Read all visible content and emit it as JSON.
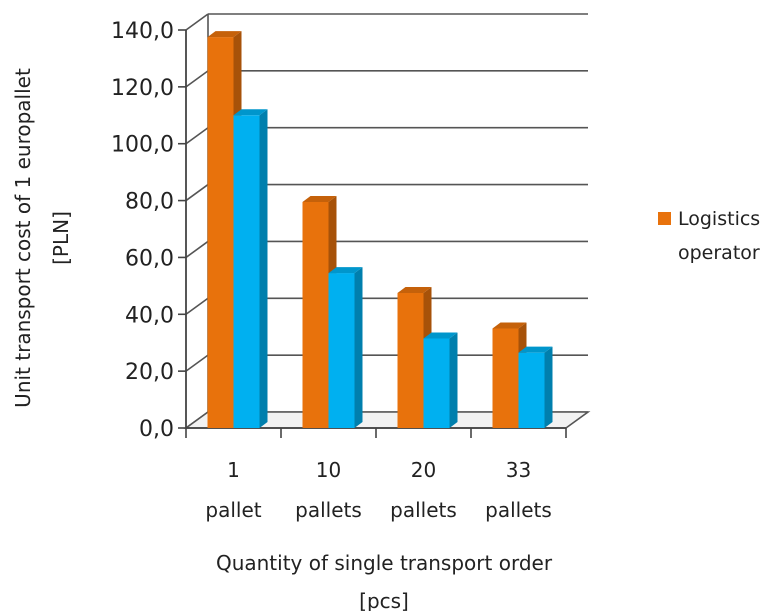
{
  "chart_data": {
    "type": "bar",
    "categories": [
      "1 pallet",
      "10 pallets",
      "20 pallets",
      "33 pallets"
    ],
    "category_lines": [
      [
        "1",
        "pallet"
      ],
      [
        "10",
        "pallets"
      ],
      [
        "20",
        "pallets"
      ],
      [
        "33",
        "pallets"
      ]
    ],
    "series": [
      {
        "name": "Logistics operator",
        "values": [
          137.5,
          79.5,
          47.5,
          35.0
        ],
        "color": "#e8720c"
      },
      {
        "values": [
          110.0,
          54.5,
          31.5,
          26.5
        ],
        "color": "#00b0f0"
      }
    ],
    "ylim": [
      0,
      140
    ],
    "yticks": [
      "0,0",
      "20,0",
      "40,0",
      "60,0",
      "80,0",
      "100,0",
      "120,0",
      "140,0"
    ],
    "ylabel_lines": [
      "Unit transport cost of 1 europallet",
      "[PLN]"
    ],
    "xlabel_lines": [
      "Quantity of single transport order",
      "[pcs]"
    ],
    "legend": {
      "lines": [
        "Logistics",
        "operator"
      ],
      "position": "right"
    },
    "grid": true,
    "three_d": true
  }
}
